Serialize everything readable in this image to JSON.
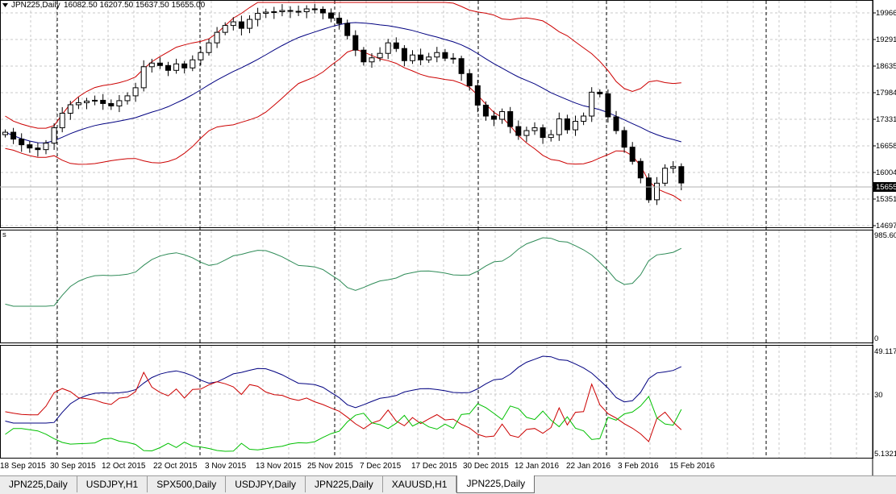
{
  "header": {
    "symbol": "JPN225,Daily",
    "ohlc": "16082.50 16207.50 15637.50 15655.00"
  },
  "price_scale": [
    "19966",
    "19291",
    "18635",
    "17984",
    "17331",
    "16658",
    "16004",
    "15351",
    "14697"
  ],
  "current_price": "15655",
  "indicator1_scale": [
    "985.60",
    "0"
  ],
  "indicator2_scale": [
    "49.117",
    "30",
    "5.1321"
  ],
  "dates": [
    "18 Sep 2015",
    "30 Sep 2015",
    "12 Oct 2015",
    "22 Oct 2015",
    "3 Nov 2015",
    "13 Nov 2015",
    "25 Nov 2015",
    "7 Dec 2015",
    "17 Dec 2015",
    "30 Dec 2015",
    "12 Jan 2016",
    "22 Jan 2016",
    "3 Feb 2016",
    "15 Feb 2016"
  ],
  "tabs": [
    "JPN225,Daily",
    "USDJPY,H1",
    "SPX500,Daily",
    "USDJPY,Daily",
    "JPN225,Daily",
    "XAUUSD,H1",
    "JPN225,Daily"
  ],
  "active_tab": 6,
  "colors": {
    "band_outer": "#cc0000",
    "band_middle": "#000080",
    "indicator1_line": "#2e8b57",
    "line_blue": "#000080",
    "line_red": "#cc0000",
    "line_green": "#00c000"
  },
  "chart_data": {
    "type": "candlestick",
    "price_range": [
      14580,
      20120
    ],
    "closes": [
      16910,
      16740,
      16600,
      16520,
      16480,
      16640,
      17020,
      17380,
      17590,
      17640,
      17680,
      17700,
      17620,
      17560,
      17690,
      17810,
      18010,
      18530,
      18620,
      18560,
      18440,
      18600,
      18500,
      18700,
      18880,
      19120,
      19380,
      19550,
      19640,
      19480,
      19700,
      19850,
      19880,
      19890,
      19920,
      19900,
      19890,
      19960,
      19950,
      19860,
      19730,
      19600,
      19300,
      18940,
      18650,
      18750,
      18860,
      19120,
      18980,
      18680,
      18820,
      18700,
      18770,
      18880,
      18740,
      18730,
      18360,
      18060,
      17580,
      17310,
      17230,
      17420,
      17050,
      16830,
      16950,
      17020,
      16780,
      16850,
      17240,
      16970,
      17180,
      17310,
      17900,
      17860,
      17290,
      16950,
      16540,
      16190,
      15780,
      15240,
      15650,
      16020,
      16060,
      15655
    ]
  }
}
